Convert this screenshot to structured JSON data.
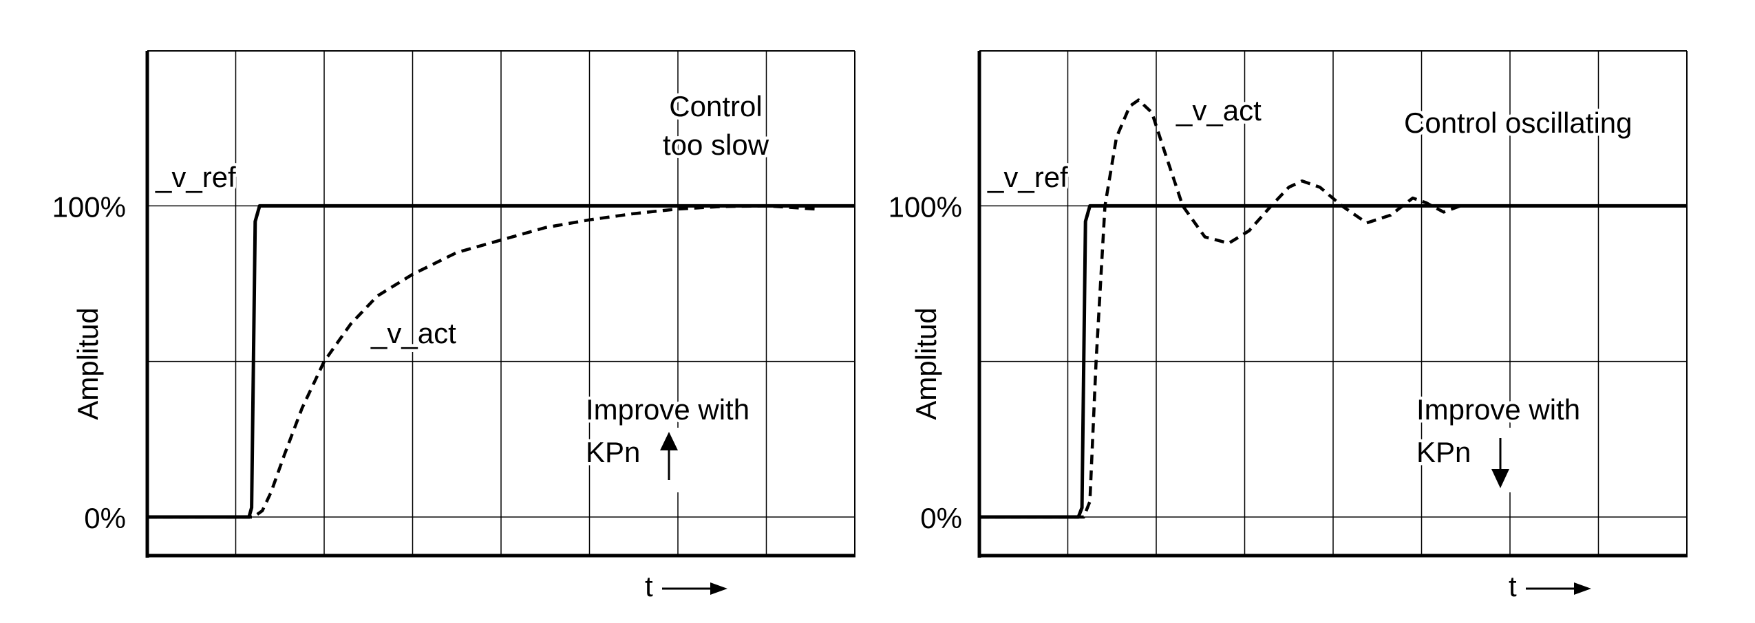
{
  "chart_data": [
    {
      "type": "line",
      "title": "Control too slow",
      "title_lines": [
        "Control",
        "too slow"
      ],
      "xlabel": "t",
      "ylabel": "Amplitud",
      "y_ticks": [
        {
          "value": 0,
          "label": "0%"
        },
        {
          "value": 1,
          "label": "100%"
        }
      ],
      "xlim": [
        0,
        8
      ],
      "ylim": [
        -0.124,
        1.498
      ],
      "grid": true,
      "x_grid_count": 8,
      "y_grid": [
        0,
        0.5,
        1
      ],
      "hint": {
        "line1": "Improve with",
        "line2": "KPn",
        "direction": "up"
      },
      "series": [
        {
          "name": "_v_ref",
          "style": "solid",
          "points": [
            [
              0,
              0
            ],
            [
              1.15,
              0
            ],
            [
              1.18,
              0.03
            ],
            [
              1.22,
              0.95
            ],
            [
              1.27,
              1.0
            ],
            [
              8,
              1.0
            ]
          ]
        },
        {
          "name": "_v_act",
          "style": "dashed",
          "points": [
            [
              0,
              0
            ],
            [
              1.2,
              0
            ],
            [
              1.3,
              0.02
            ],
            [
              1.4,
              0.08
            ],
            [
              1.55,
              0.2
            ],
            [
              1.75,
              0.35
            ],
            [
              2.0,
              0.5
            ],
            [
              2.3,
              0.62
            ],
            [
              2.6,
              0.71
            ],
            [
              3.0,
              0.78
            ],
            [
              3.5,
              0.85
            ],
            [
              4.0,
              0.89
            ],
            [
              4.5,
              0.93
            ],
            [
              5.0,
              0.955
            ],
            [
              5.5,
              0.975
            ],
            [
              6.0,
              0.99
            ],
            [
              6.5,
              0.998
            ],
            [
              7.0,
              1.0
            ],
            [
              7.55,
              0.99
            ]
          ]
        }
      ]
    },
    {
      "type": "line",
      "title": "Control oscillating",
      "title_lines": [
        "Control oscillating"
      ],
      "xlabel": "t",
      "ylabel": "Amplitud",
      "y_ticks": [
        {
          "value": 0,
          "label": "0%"
        },
        {
          "value": 1,
          "label": "100%"
        }
      ],
      "xlim": [
        0,
        8
      ],
      "ylim": [
        -0.124,
        1.498
      ],
      "grid": true,
      "x_grid_count": 8,
      "y_grid": [
        0,
        0.5,
        1
      ],
      "hint": {
        "line1": "Improve with",
        "line2": "KPn",
        "direction": "down"
      },
      "series": [
        {
          "name": "_v_ref",
          "style": "solid",
          "points": [
            [
              0,
              0
            ],
            [
              1.12,
              0
            ],
            [
              1.16,
              0.03
            ],
            [
              1.2,
              0.95
            ],
            [
              1.25,
              1.0
            ],
            [
              8,
              1.0
            ]
          ]
        },
        {
          "name": "_v_act",
          "style": "dashed",
          "points": [
            [
              0,
              0
            ],
            [
              1.18,
              0
            ],
            [
              1.25,
              0.05
            ],
            [
              1.32,
              0.5
            ],
            [
              1.42,
              1.0
            ],
            [
              1.55,
              1.22
            ],
            [
              1.7,
              1.32
            ],
            [
              1.8,
              1.34
            ],
            [
              1.95,
              1.3
            ],
            [
              2.1,
              1.17
            ],
            [
              2.3,
              1.0
            ],
            [
              2.55,
              0.9
            ],
            [
              2.82,
              0.88
            ],
            [
              3.05,
              0.92
            ],
            [
              3.3,
              1.0
            ],
            [
              3.5,
              1.06
            ],
            [
              3.65,
              1.08
            ],
            [
              3.85,
              1.06
            ],
            [
              4.1,
              1.0
            ],
            [
              4.38,
              0.945
            ],
            [
              4.65,
              0.97
            ],
            [
              4.9,
              1.025
            ],
            [
              5.05,
              1.01
            ],
            [
              5.25,
              0.98
            ],
            [
              5.44,
              1.0
            ]
          ]
        }
      ]
    }
  ]
}
